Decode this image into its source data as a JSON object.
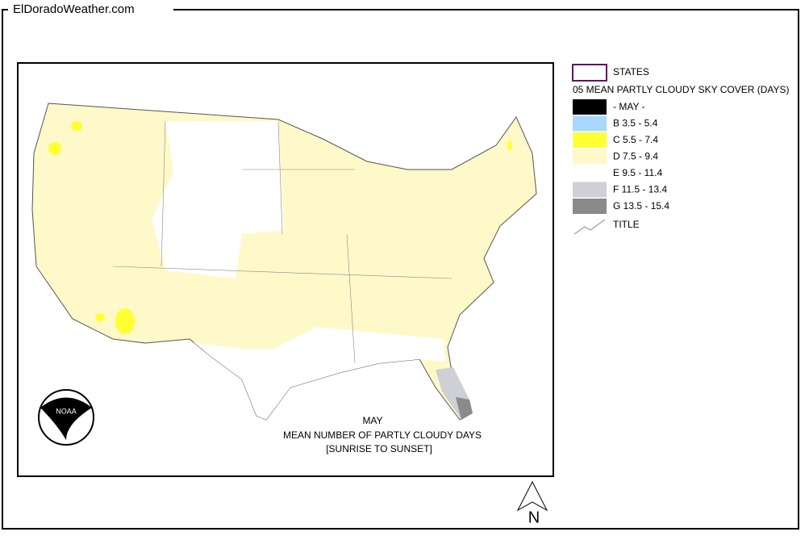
{
  "header": {
    "site": "ElDoradoWeather.com"
  },
  "legend": {
    "states_label": "STATES",
    "title": "05 MEAN PARTLY CLOUDY SKY COVER (DAYS)",
    "items": [
      {
        "label": "- MAY -",
        "color": "#000000"
      },
      {
        "label": "B 3.5 - 5.4",
        "color": "#a8d8ff"
      },
      {
        "label": "C 5.5 - 7.4",
        "color": "#ffff33"
      },
      {
        "label": "D 7.5 - 9.4",
        "color": "#fff8c8"
      },
      {
        "label": "E 9.5 - 11.4",
        "color": "#ffffff"
      },
      {
        "label": "F 11.5 - 13.4",
        "color": "#cfcfd6"
      },
      {
        "label": "G 13.5 - 15.4",
        "color": "#8a8a8a"
      }
    ],
    "line_label": "TITLE"
  },
  "map": {
    "month": "MAY",
    "caption": "MEAN NUMBER OF PARTLY CLOUDY DAYS",
    "subcaption": "[SUNRISE TO SUNSET]",
    "logo": "NOAA",
    "north": "N"
  }
}
